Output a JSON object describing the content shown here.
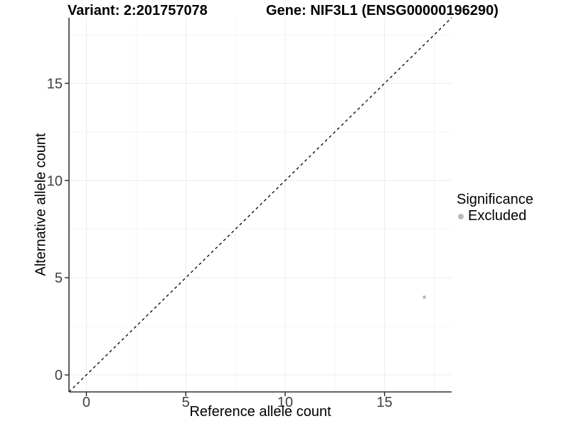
{
  "header": {
    "title_left": "Variant: 2:201757078",
    "title_right": "Gene: NIF3L1 (ENSG00000196290)"
  },
  "legend": {
    "title": "Significance",
    "items": [
      {
        "label": "Excluded",
        "color": "#b9b9b9",
        "marker": "circle"
      }
    ]
  },
  "chart_data": {
    "type": "scatter",
    "title": "Variant: 2:201757078   Gene: NIF3L1 (ENSG00000196290)",
    "xlabel": "Reference allele count",
    "ylabel": "Alternative allele count",
    "xlim": [
      -0.875,
      18.375
    ],
    "ylim": [
      -0.875,
      18.375
    ],
    "x_ticks": [
      0,
      5,
      10,
      15
    ],
    "y_ticks": [
      0,
      5,
      10,
      15
    ],
    "minor_ticks": [
      2.5,
      7.5,
      12.5,
      17.5
    ],
    "grid": "major+minor",
    "legend_position": "right",
    "series": [
      {
        "name": "Excluded",
        "color": "#b9b9b9",
        "points": [
          {
            "x": 17,
            "y": 4
          }
        ]
      }
    ],
    "reference_line": {
      "kind": "identity y=x",
      "style": "dashed",
      "color": "#000000"
    }
  },
  "colors": {
    "background": "#ffffff",
    "axis": "#333333",
    "tick_label": "#404040",
    "grid_major": "#ececec",
    "grid_minor": "#f5f5f5",
    "text": "#000000"
  }
}
